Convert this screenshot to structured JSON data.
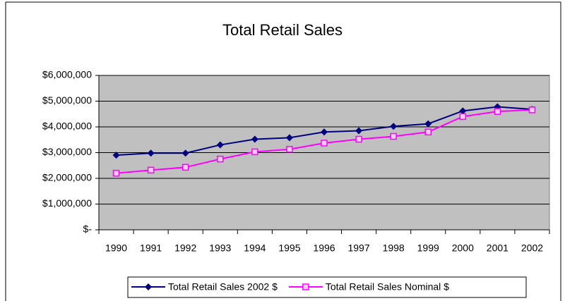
{
  "chart_data": {
    "type": "line",
    "title": "Total Retail Sales",
    "categories": [
      "1990",
      "1991",
      "1992",
      "1993",
      "1994",
      "1995",
      "1996",
      "1997",
      "1998",
      "1999",
      "2000",
      "2001",
      "2002"
    ],
    "series": [
      {
        "name": "Total Retail Sales 2002 $",
        "color": "#000080",
        "marker": "diamond",
        "values": [
          2900000,
          2980000,
          2980000,
          3300000,
          3520000,
          3580000,
          3800000,
          3850000,
          4020000,
          4120000,
          4620000,
          4780000,
          4680000
        ]
      },
      {
        "name": "Total Retail Sales Nominal $",
        "color": "#ff00ff",
        "marker": "square",
        "values": [
          2200000,
          2320000,
          2430000,
          2750000,
          3030000,
          3130000,
          3370000,
          3520000,
          3630000,
          3800000,
          4400000,
          4600000,
          4660000
        ]
      }
    ],
    "ylim": [
      0,
      6000000
    ],
    "yticks": [
      {
        "value": 0,
        "label": "$-"
      },
      {
        "value": 1000000,
        "label": "$1,000,000"
      },
      {
        "value": 2000000,
        "label": "$2,000,000"
      },
      {
        "value": 3000000,
        "label": "$3,000,000"
      },
      {
        "value": 4000000,
        "label": "$4,000,000"
      },
      {
        "value": 5000000,
        "label": "$5,000,000"
      },
      {
        "value": 6000000,
        "label": "$6,000,000"
      }
    ],
    "grid": true,
    "legend": "bottom",
    "plot_background": "#c0c0c0"
  }
}
